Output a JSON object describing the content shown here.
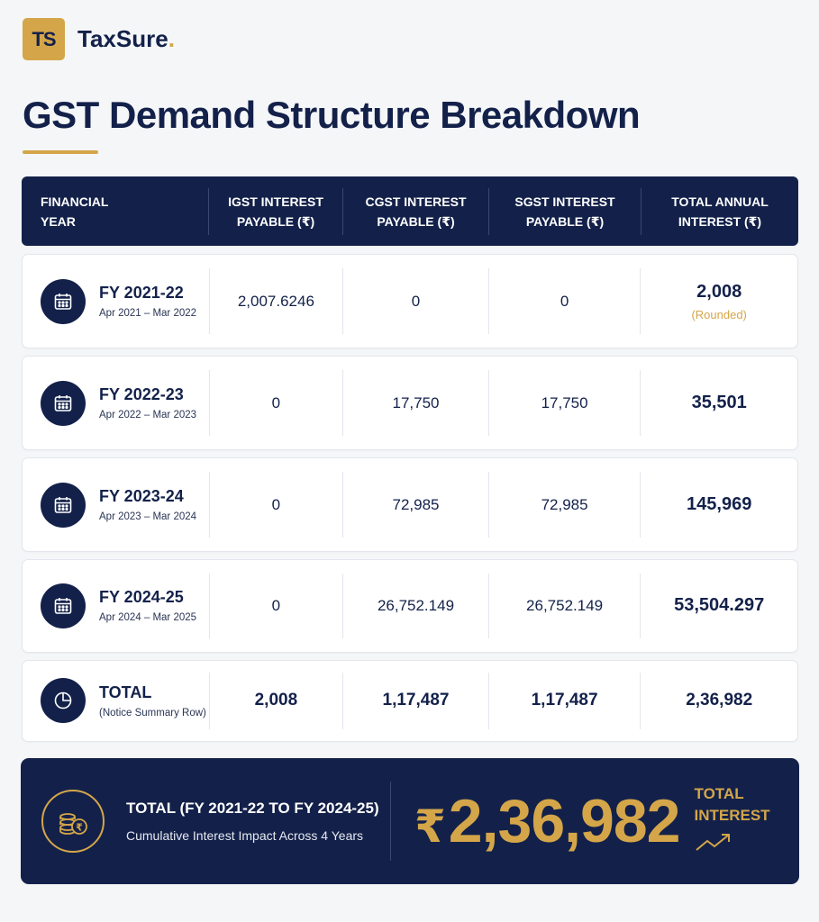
{
  "brand": {
    "mark": "TS",
    "name": "TaxSure",
    "dot": "."
  },
  "page_title": "GST Demand Structure Breakdown",
  "columns": [
    {
      "line1": "FINANCIAL",
      "line2": "YEAR"
    },
    {
      "line1": "IGST INTEREST",
      "line2": "PAYABLE (₹)"
    },
    {
      "line1": "CGST INTEREST",
      "line2": "PAYABLE (₹)"
    },
    {
      "line1": "SGST INTEREST",
      "line2": "PAYABLE (₹)"
    },
    {
      "line1": "TOTAL ANNUAL",
      "line2": "INTEREST (₹)"
    }
  ],
  "rows": [
    {
      "icon": "calendar-icon",
      "year": "FY 2021-22",
      "range": "Apr 2021 – Mar 2022",
      "igst": "2,007.6246",
      "cgst": "0",
      "sgst": "0",
      "total": "2,008",
      "note": "(Rounded)"
    },
    {
      "icon": "calendar-icon",
      "year": "FY 2022-23",
      "range": "Apr 2022 – Mar 2023",
      "igst": "0",
      "cgst": "17,750",
      "sgst": "17,750",
      "total": "35,501"
    },
    {
      "icon": "calendar-icon",
      "year": "FY 2023-24",
      "range": "Apr 2023 – Mar 2024",
      "igst": "0",
      "cgst": "72,985",
      "sgst": "72,985",
      "total": "145,969"
    },
    {
      "icon": "calendar-icon",
      "year": "FY 2024-25",
      "range": "Apr 2024 – Mar 2025",
      "igst": "0",
      "cgst": "26,752.149",
      "sgst": "26,752.149",
      "total": "53,504.297"
    }
  ],
  "summary": {
    "icon": "pie-chart-icon",
    "label": "TOTAL",
    "sub": "(Notice Summary Row)",
    "igst": "2,008",
    "cgst": "1,17,487",
    "sgst": "1,17,487",
    "total": "2,36,982"
  },
  "banner": {
    "icon": "coins-rupee-icon",
    "title": "TOTAL (FY 2021-22 TO FY 2024-25)",
    "subtitle": "Cumulative Interest Impact Across 4 Years",
    "currency": "₹",
    "amount": "2,36,982",
    "tag_line1": "TOTAL",
    "tag_line2": "INTEREST",
    "trend_icon": "trend-up-icon"
  },
  "colors": {
    "navy": "#13214a",
    "gold": "#d4a649",
    "background": "#f5f6f8"
  }
}
